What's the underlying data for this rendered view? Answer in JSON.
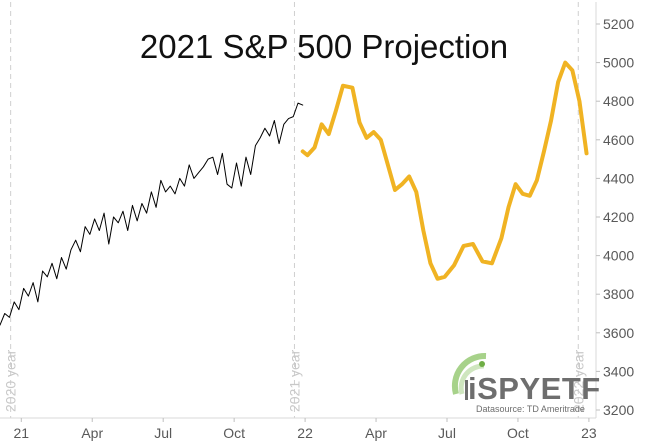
{
  "chart_data": {
    "type": "line",
    "title": "2021 S&P 500 Projection",
    "y_ticks": [
      3200,
      3400,
      3600,
      3800,
      4000,
      4200,
      4400,
      4600,
      4800,
      5000,
      5200
    ],
    "ylim": [
      3200,
      5200
    ],
    "x_ticks": [
      {
        "label": "21",
        "t": 0
      },
      {
        "label": "Apr",
        "t": 3
      },
      {
        "label": "Jul",
        "t": 6
      },
      {
        "label": "Oct",
        "t": 9
      },
      {
        "label": "22",
        "t": 12
      },
      {
        "label": "Apr",
        "t": 15
      },
      {
        "label": "Jul",
        "t": 18
      },
      {
        "label": "Oct",
        "t": 21
      },
      {
        "label": "23",
        "t": 24
      }
    ],
    "xlim": [
      -0.9,
      24.3
    ],
    "year_labels": [
      {
        "label": "2020 year",
        "t": -0.45
      },
      {
        "label": "2021 year",
        "t": 11.55
      },
      {
        "label": "2022 year",
        "t": 23.55
      }
    ],
    "gridlines_x": [
      -0.45,
      11.55,
      23.55
    ],
    "series": [
      {
        "color": "#000000",
        "x": [
          -0.9,
          -0.7,
          -0.5,
          -0.3,
          -0.1,
          0.1,
          0.3,
          0.5,
          0.7,
          0.9,
          1.1,
          1.3,
          1.5,
          1.7,
          1.9,
          2.1,
          2.3,
          2.5,
          2.7,
          2.9,
          3.1,
          3.3,
          3.5,
          3.7,
          3.9,
          4.1,
          4.3,
          4.5,
          4.7,
          4.9,
          5.1,
          5.3,
          5.5,
          5.7,
          5.9,
          6.1,
          6.3,
          6.5,
          6.7,
          6.9,
          7.1,
          7.3,
          7.5,
          7.7,
          7.9,
          8.1,
          8.3,
          8.5,
          8.7,
          8.9,
          9.1,
          9.3,
          9.5,
          9.7,
          9.9,
          10.1,
          10.3,
          10.5,
          10.7,
          10.9,
          11.1,
          11.3,
          11.5,
          11.7,
          11.9
        ],
        "values": [
          3640,
          3700,
          3680,
          3760,
          3720,
          3830,
          3790,
          3860,
          3760,
          3920,
          3890,
          3960,
          3880,
          3990,
          3930,
          4030,
          4080,
          4020,
          4150,
          4110,
          4190,
          4130,
          4220,
          4060,
          4200,
          4170,
          4230,
          4130,
          4260,
          4180,
          4270,
          4220,
          4330,
          4250,
          4390,
          4330,
          4360,
          4320,
          4400,
          4360,
          4470,
          4400,
          4430,
          4460,
          4500,
          4510,
          4420,
          4530,
          4370,
          4350,
          4480,
          4360,
          4510,
          4420,
          4570,
          4610,
          4660,
          4620,
          4700,
          4580,
          4680,
          4710,
          4720,
          4790,
          4780
        ]
      },
      {
        "color": "#f0b323",
        "x": [
          11.9,
          12.1,
          12.4,
          12.7,
          13.0,
          13.3,
          13.6,
          14.0,
          14.3,
          14.6,
          14.9,
          15.2,
          15.5,
          15.8,
          16.1,
          16.4,
          16.7,
          17.0,
          17.3,
          17.6,
          17.9,
          18.3,
          18.7,
          19.1,
          19.5,
          19.9,
          20.3,
          20.6,
          20.9,
          21.2,
          21.5,
          21.8,
          22.1,
          22.4,
          22.7,
          23.0,
          23.3,
          23.6,
          23.9
        ],
        "values": [
          4540,
          4520,
          4560,
          4680,
          4630,
          4750,
          4880,
          4870,
          4690,
          4610,
          4640,
          4600,
          4470,
          4340,
          4370,
          4410,
          4330,
          4130,
          3960,
          3880,
          3890,
          3950,
          4050,
          4060,
          3970,
          3960,
          4090,
          4250,
          4370,
          4320,
          4310,
          4390,
          4540,
          4700,
          4900,
          5000,
          4960,
          4800,
          4530
        ]
      }
    ]
  },
  "watermark": {
    "brand": "iSPYETF",
    "datasource": "Datasource: TD Ameritrade"
  }
}
